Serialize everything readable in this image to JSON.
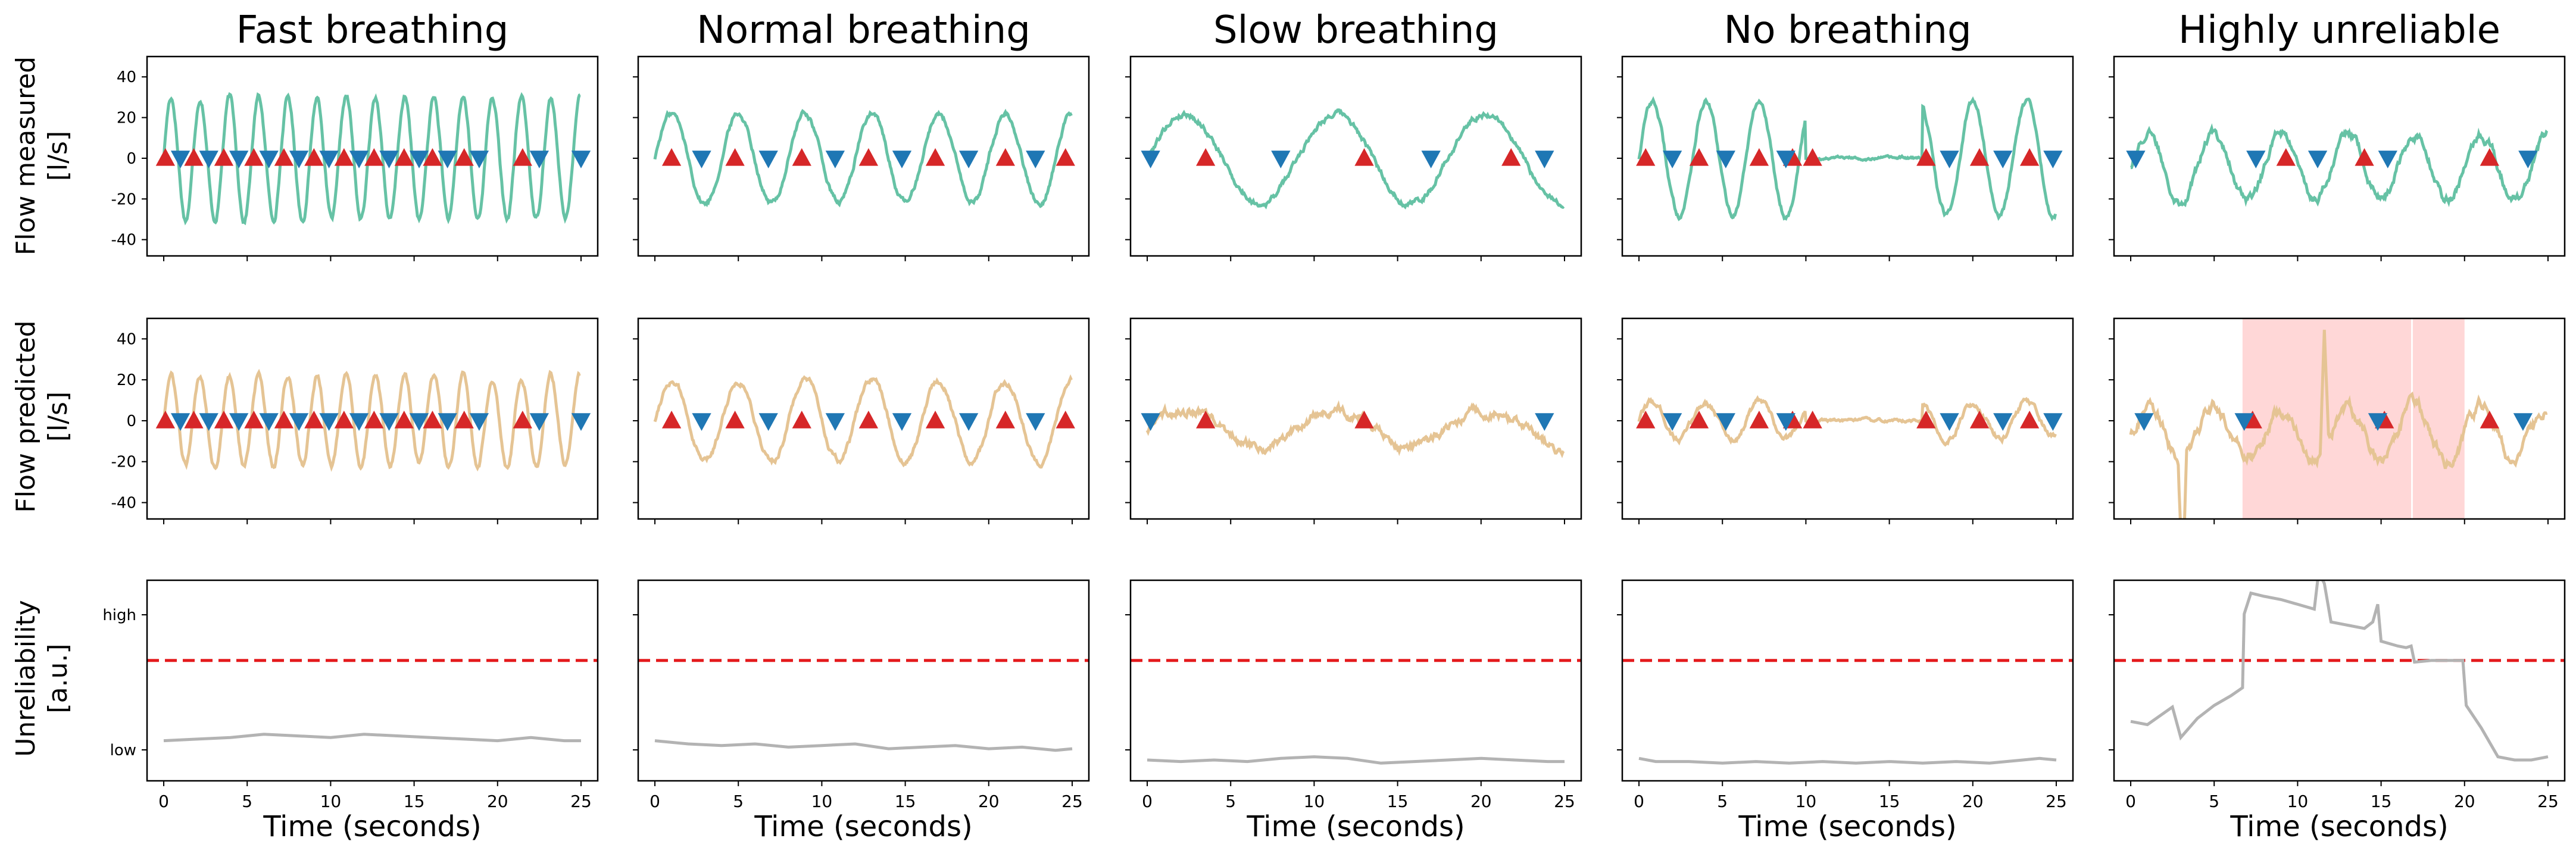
{
  "figure": {
    "row_labels": [
      [
        "Flow measured",
        "[l/s]"
      ],
      [
        "Flow predicted",
        "[l/s]"
      ],
      [
        "Unreliability",
        "[a.u.]"
      ]
    ],
    "xlabel": "Time (seconds)",
    "colors": {
      "measured": "#66c2a5",
      "predicted": "#e5c494",
      "unreliability": "#b3b3b3",
      "threshold": "#e41a1c",
      "inhale_marker": "#d62728",
      "exhale_marker": "#1f77b4",
      "unreliable_region": "#ffd7d7"
    }
  },
  "chart_data": [
    {
      "type": "line",
      "title": "Fast breathing",
      "xlim": [
        -1,
        26
      ],
      "xticks": [
        0,
        5,
        10,
        15,
        20,
        25
      ],
      "panels": {
        "measured": {
          "ylim": [
            -48,
            50
          ],
          "yticks": [
            -40,
            -20,
            0,
            20,
            40
          ],
          "period": 1.75,
          "amplitude": 30,
          "offset": 0,
          "noise": 2,
          "inhale": [
            0.1,
            1.8,
            3.6,
            5.4,
            7.2,
            9.0,
            10.8,
            12.6,
            14.4,
            16.1,
            18.0,
            21.5
          ],
          "exhale": [
            1.0,
            2.7,
            4.5,
            6.3,
            8.1,
            9.9,
            11.7,
            13.5,
            15.3,
            17.0,
            18.9,
            22.5,
            25.0
          ]
        },
        "predicted": {
          "ylim": [
            -48,
            50
          ],
          "yticks": [
            -40,
            -20,
            0,
            20,
            40
          ],
          "period": 1.75,
          "amplitude": 22,
          "offset": 0,
          "noise": 2,
          "inhale": [
            0.1,
            1.8,
            3.6,
            5.4,
            7.2,
            9.0,
            10.8,
            12.6,
            14.4,
            16.1,
            18.0,
            21.5
          ],
          "exhale": [
            1.0,
            2.7,
            4.5,
            6.3,
            8.1,
            9.9,
            11.7,
            13.5,
            15.3,
            17.0,
            18.9,
            22.5,
            25.0
          ],
          "unreliable_regions": []
        },
        "unreliability": {
          "yticks": [
            "low",
            "high"
          ],
          "threshold": 0.5,
          "x": [
            0,
            2,
            4,
            6,
            8,
            10,
            12,
            14,
            16,
            18,
            20,
            22,
            24,
            25
          ],
          "values": [
            0.0,
            0.01,
            0.02,
            0.04,
            0.03,
            0.02,
            0.04,
            0.03,
            0.02,
            0.01,
            0.0,
            0.02,
            0.0,
            0.0
          ]
        }
      }
    },
    {
      "type": "line",
      "title": "Normal breathing",
      "xlim": [
        -1,
        26
      ],
      "xticks": [
        0,
        5,
        10,
        15,
        20,
        25
      ],
      "panels": {
        "measured": {
          "ylim": [
            -48,
            50
          ],
          "yticks": [
            -40,
            -20,
            0,
            20,
            40
          ],
          "period": 4.0,
          "amplitude": 22,
          "offset": 0,
          "noise": 2,
          "inhale": [
            1.0,
            4.8,
            8.8,
            12.8,
            16.8,
            21.0,
            24.6
          ],
          "exhale": [
            2.8,
            6.8,
            10.8,
            14.8,
            18.8,
            22.8
          ]
        },
        "predicted": {
          "ylim": [
            -48,
            50
          ],
          "yticks": [
            -40,
            -20,
            0,
            20,
            40
          ],
          "period": 4.0,
          "amplitude": 20,
          "offset": 0,
          "noise": 2,
          "inhale": [
            1.0,
            4.8,
            8.8,
            12.8,
            16.8,
            21.0,
            24.6
          ],
          "exhale": [
            2.8,
            6.8,
            10.8,
            14.8,
            18.8,
            22.8
          ],
          "unreliable_regions": []
        },
        "unreliability": {
          "yticks": [
            "low",
            "high"
          ],
          "threshold": 0.5,
          "x": [
            0,
            2,
            4,
            6,
            8,
            10,
            12,
            14,
            16,
            18,
            20,
            22,
            24,
            25
          ],
          "values": [
            0.0,
            -0.02,
            -0.03,
            -0.02,
            -0.04,
            -0.03,
            -0.02,
            -0.05,
            -0.04,
            -0.03,
            -0.05,
            -0.04,
            -0.06,
            -0.05
          ]
        }
      }
    },
    {
      "type": "line",
      "title": "Slow breathing",
      "xlim": [
        -1,
        26
      ],
      "xticks": [
        0,
        5,
        10,
        15,
        20,
        25
      ],
      "panels": {
        "measured": {
          "ylim": [
            -48,
            50
          ],
          "yticks": [
            -40,
            -20,
            0,
            20,
            40
          ],
          "period": 9.0,
          "amplitude": 22,
          "offset": 0,
          "noise": 2,
          "inhale": [
            3.5,
            13.0,
            21.8
          ],
          "exhale": [
            0.2,
            8.0,
            17.0,
            23.8
          ]
        },
        "predicted": {
          "ylim": [
            -48,
            50
          ],
          "yticks": [
            -40,
            -20,
            0,
            20,
            40
          ],
          "period": 9.0,
          "amplitude": 9,
          "offset": -4,
          "noise": 3,
          "inhale": [
            3.5,
            13.0
          ],
          "exhale": [
            0.2,
            23.8
          ],
          "unreliable_regions": []
        },
        "unreliability": {
          "yticks": [
            "low",
            "high"
          ],
          "threshold": 0.5,
          "x": [
            0,
            2,
            4,
            6,
            8,
            10,
            12,
            14,
            16,
            18,
            20,
            22,
            24,
            25
          ],
          "values": [
            -0.12,
            -0.13,
            -0.12,
            -0.13,
            -0.11,
            -0.1,
            -0.11,
            -0.14,
            -0.13,
            -0.12,
            -0.11,
            -0.12,
            -0.13,
            -0.13
          ]
        }
      }
    },
    {
      "type": "line",
      "title": "No breathing",
      "xlim": [
        -1,
        26
      ],
      "xticks": [
        0,
        5,
        10,
        15,
        20,
        25
      ],
      "panels": {
        "measured": {
          "ylim": [
            -48,
            50
          ],
          "yticks": [
            -40,
            -20,
            0,
            20,
            40
          ],
          "period": 3.2,
          "amplitude": 28,
          "offset": 0,
          "noise": 2,
          "flat": [
            10.0,
            17.0
          ],
          "inhale": [
            0.4,
            3.6,
            7.2,
            9.2,
            10.4,
            17.2,
            20.4,
            23.4
          ],
          "exhale": [
            2.0,
            5.2,
            8.8,
            18.6,
            21.8,
            24.8
          ]
        },
        "predicted": {
          "ylim": [
            -48,
            50
          ],
          "yticks": [
            -40,
            -20,
            0,
            20,
            40
          ],
          "period": 3.2,
          "amplitude": 9,
          "offset": 0,
          "noise": 2,
          "flat": [
            10.0,
            17.0
          ],
          "inhale": [
            0.4,
            3.6,
            7.2,
            9.2,
            10.4,
            17.2,
            20.4,
            23.4
          ],
          "exhale": [
            2.0,
            5.2,
            8.8,
            18.6,
            21.8,
            24.8
          ],
          "unreliable_regions": []
        },
        "unreliability": {
          "yticks": [
            "low",
            "high"
          ],
          "threshold": 0.5,
          "x": [
            0,
            1,
            3,
            5,
            7,
            9,
            11,
            13,
            15,
            17,
            19,
            21,
            23,
            24,
            25
          ],
          "values": [
            -0.11,
            -0.13,
            -0.13,
            -0.14,
            -0.13,
            -0.14,
            -0.13,
            -0.14,
            -0.13,
            -0.14,
            -0.13,
            -0.14,
            -0.12,
            -0.11,
            -0.12
          ]
        }
      }
    },
    {
      "type": "line",
      "title": "Highly unreliable",
      "xlim": [
        -1,
        26
      ],
      "xticks": [
        0,
        5,
        10,
        15,
        20,
        25
      ],
      "panels": {
        "measured": {
          "ylim": [
            -48,
            50
          ],
          "yticks": [
            -40,
            -20,
            0,
            20,
            40
          ],
          "period": 4.0,
          "amplitude": 16,
          "offset": -4,
          "noise": 3,
          "inhale": [
            9.3,
            14.0,
            21.5
          ],
          "exhale": [
            0.3,
            7.5,
            11.2,
            15.4,
            23.8
          ]
        },
        "predicted": {
          "ylim": [
            -48,
            50
          ],
          "yticks": [
            -40,
            -20,
            0,
            20,
            40
          ],
          "period": 4.0,
          "amplitude": 12,
          "offset": -6,
          "noise": 4,
          "spikes": [
            3.1,
            11.6
          ],
          "inhale": [
            7.3,
            15.2,
            21.5
          ],
          "exhale": [
            0.8,
            6.8,
            14.8,
            23.5
          ],
          "unreliable_regions": [
            [
              6.7,
              16.8
            ],
            [
              16.9,
              20.0
            ]
          ]
        },
        "unreliability": {
          "yticks": [
            "low",
            "high"
          ],
          "threshold": 0.5,
          "x": [
            0,
            1,
            2.5,
            3,
            4,
            5,
            6,
            6.7,
            6.8,
            7.2,
            8,
            9,
            10,
            11,
            11.2,
            11.4,
            11.6,
            12,
            13,
            14,
            14.5,
            14.8,
            15,
            16,
            16.5,
            16.8,
            17,
            18,
            19.9,
            20.1,
            21,
            22,
            23,
            24,
            25
          ],
          "values": [
            0.12,
            0.1,
            0.21,
            0.02,
            0.14,
            0.22,
            0.28,
            0.33,
            0.79,
            0.92,
            0.9,
            0.88,
            0.85,
            0.82,
            1.0,
            1.02,
            0.98,
            0.74,
            0.72,
            0.7,
            0.74,
            0.85,
            0.62,
            0.59,
            0.58,
            0.59,
            0.49,
            0.5,
            0.5,
            0.22,
            0.08,
            -0.1,
            -0.12,
            -0.12,
            -0.1
          ]
        }
      }
    }
  ]
}
